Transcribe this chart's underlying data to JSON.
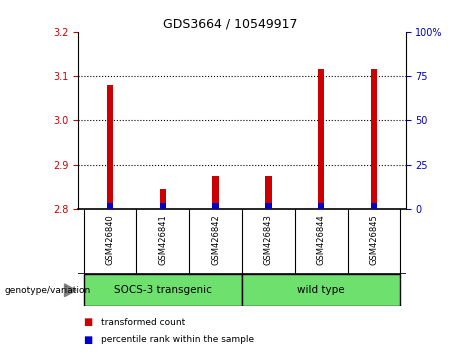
{
  "title": "GDS3664 / 10549917",
  "samples": [
    "GSM426840",
    "GSM426841",
    "GSM426842",
    "GSM426843",
    "GSM426844",
    "GSM426845"
  ],
  "red_values": [
    3.08,
    2.845,
    2.875,
    2.875,
    3.115,
    3.115
  ],
  "blue_values": [
    0.013,
    0.013,
    0.013,
    0.013,
    0.013,
    0.013
  ],
  "baseline": 2.8,
  "ylim_left": [
    2.8,
    3.2
  ],
  "ylim_right": [
    0,
    100
  ],
  "yticks_left": [
    2.8,
    2.9,
    3.0,
    3.1,
    3.2
  ],
  "yticks_right": [
    0,
    25,
    50,
    75,
    100
  ],
  "ylabel_right_labels": [
    "0",
    "25",
    "50",
    "75",
    "100%"
  ],
  "group_label_x": "genotype/variation",
  "group1_label": "SOCS-3 transgenic",
  "group2_label": "wild type",
  "group_color": "#6EE06E",
  "legend_red": "transformed count",
  "legend_blue": "percentile rank within the sample",
  "bar_width": 0.12,
  "red_color": "#CC0000",
  "blue_color": "#0000CC",
  "tick_label_color_left": "#CC0000",
  "tick_label_color_right": "#0000BB",
  "bg_color_plot": "#FFFFFF",
  "bg_color_xticklabels": "#C8C8C8",
  "grid_dotted_color": "#000000"
}
